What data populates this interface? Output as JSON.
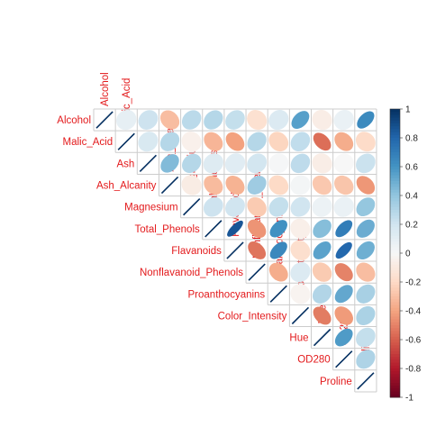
{
  "chart_data": {
    "type": "heatmap",
    "variables": [
      "Alcohol",
      "Malic_Acid",
      "Ash",
      "Ash_Alcanity",
      "Magnesium",
      "Total_Phenols",
      "Flavanoids",
      "Nonflavanoid_Phenols",
      "Proanthocyanins",
      "Color_Intensity",
      "Hue",
      "OD280",
      "Proline"
    ],
    "matrix": [
      [
        1.0,
        0.09,
        0.21,
        -0.31,
        0.27,
        0.29,
        0.24,
        -0.16,
        0.14,
        0.55,
        -0.07,
        0.07,
        0.64
      ],
      [
        0.09,
        1.0,
        0.16,
        0.29,
        -0.05,
        -0.34,
        -0.41,
        0.29,
        -0.22,
        0.25,
        -0.56,
        -0.37,
        -0.19
      ],
      [
        0.21,
        0.16,
        1.0,
        0.44,
        0.29,
        0.13,
        0.12,
        0.19,
        0.01,
        0.26,
        -0.07,
        0.0,
        0.22
      ],
      [
        -0.31,
        0.29,
        0.44,
        1.0,
        -0.08,
        -0.32,
        -0.35,
        0.36,
        -0.2,
        0.02,
        -0.27,
        -0.28,
        -0.44
      ],
      [
        0.27,
        -0.05,
        0.29,
        -0.08,
        1.0,
        0.21,
        0.2,
        -0.26,
        0.24,
        0.2,
        0.06,
        0.07,
        0.39
      ],
      [
        0.29,
        -0.34,
        0.13,
        -0.32,
        0.21,
        1.0,
        0.86,
        -0.45,
        0.61,
        -0.06,
        0.43,
        0.7,
        0.5
      ],
      [
        0.24,
        -0.41,
        0.12,
        -0.35,
        0.2,
        0.86,
        1.0,
        -0.54,
        0.65,
        -0.17,
        0.54,
        0.79,
        0.49
      ],
      [
        -0.16,
        0.29,
        0.19,
        0.36,
        -0.26,
        -0.45,
        -0.54,
        1.0,
        -0.37,
        0.14,
        -0.26,
        -0.5,
        -0.31
      ],
      [
        0.14,
        -0.22,
        0.01,
        -0.2,
        0.24,
        0.61,
        0.65,
        -0.37,
        1.0,
        -0.03,
        0.3,
        0.52,
        0.33
      ],
      [
        0.55,
        0.25,
        0.26,
        0.02,
        0.2,
        -0.06,
        -0.17,
        0.14,
        -0.03,
        1.0,
        -0.52,
        -0.43,
        0.32
      ],
      [
        -0.07,
        -0.56,
        -0.07,
        -0.27,
        0.06,
        0.43,
        0.54,
        -0.26,
        0.3,
        -0.52,
        1.0,
        0.57,
        0.24
      ],
      [
        0.07,
        -0.37,
        0.0,
        -0.28,
        0.07,
        0.7,
        0.79,
        -0.5,
        0.52,
        -0.43,
        0.57,
        1.0,
        0.31
      ],
      [
        0.64,
        -0.19,
        0.22,
        -0.44,
        0.39,
        0.5,
        0.49,
        -0.31,
        0.33,
        0.32,
        0.24,
        0.31,
        1.0
      ]
    ],
    "layout": "upper",
    "method": "ellipse",
    "colorbar": {
      "ticks": [
        "1",
        "0.8",
        "0.6",
        "0.4",
        "0.2",
        "0",
        "-0.2",
        "-0.4",
        "-0.6",
        "-0.8",
        "-1"
      ],
      "range": [
        -1,
        1
      ]
    },
    "colors": {
      "positive": "#053061",
      "neutral": "#f7f7f7",
      "negative": "#67001f",
      "label": "#e31a1c",
      "grid": "#cccccc"
    }
  }
}
